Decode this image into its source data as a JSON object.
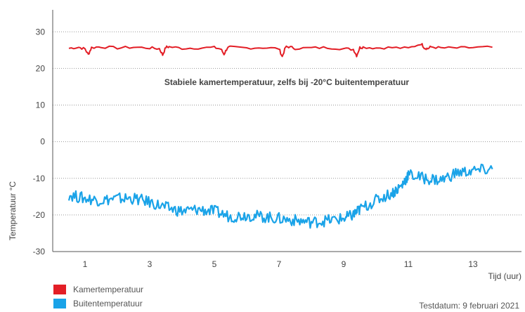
{
  "chart_data": {
    "type": "line",
    "annotation": "Stabiele kamertemperatuur, zelfs bij -20°C buitentemperatuur",
    "xlabel": "Tijd (uur)",
    "ylabel": "Temperatuur °C",
    "xlim": [
      0,
      14.5
    ],
    "ylim": [
      -30,
      36
    ],
    "xticks": [
      1,
      3,
      5,
      7,
      9,
      11,
      13
    ],
    "yticks": [
      30,
      20,
      10,
      0,
      -10,
      -20,
      -30
    ],
    "grid": "horizontal dotted",
    "legend_position": "bottom-left",
    "series": [
      {
        "name": "Kamertemperatuur",
        "color": "#e31e26",
        "x": [
          0.5,
          0.8,
          1.0,
          1.1,
          1.2,
          1.5,
          2.0,
          2.5,
          3.0,
          3.3,
          3.4,
          3.5,
          3.6,
          4.0,
          4.5,
          5.0,
          5.2,
          5.3,
          5.4,
          5.5,
          6.0,
          6.5,
          7.0,
          7.1,
          7.2,
          7.3,
          7.5,
          8.0,
          8.5,
          9.0,
          9.3,
          9.4,
          9.5,
          9.6,
          10.0,
          10.5,
          11.0,
          11.4,
          11.5,
          11.6,
          11.7,
          12.0,
          12.5,
          13.0,
          13.6
        ],
        "values": [
          25.5,
          25.8,
          25.3,
          23.8,
          25.7,
          25.9,
          25.6,
          25.8,
          25.6,
          25.4,
          23.7,
          25.8,
          25.9,
          25.5,
          25.6,
          25.7,
          25.3,
          23.9,
          25.6,
          25.8,
          25.6,
          25.7,
          25.4,
          23.2,
          25.8,
          25.9,
          25.5,
          25.6,
          25.7,
          25.4,
          25.2,
          23.5,
          25.7,
          25.8,
          25.6,
          25.7,
          25.5,
          26.8,
          25.6,
          25.4,
          25.9,
          25.6,
          25.6,
          25.7,
          25.8
        ]
      },
      {
        "name": "Buitentemperatuur",
        "color": "#1aa3e8",
        "x": [
          0.5,
          1.0,
          1.5,
          2.0,
          2.5,
          3.0,
          3.5,
          4.0,
          4.5,
          5.0,
          5.5,
          6.0,
          6.5,
          7.0,
          7.5,
          8.0,
          8.5,
          9.0,
          9.3,
          9.5,
          10.0,
          10.5,
          10.8,
          11.0,
          11.5,
          12.0,
          12.5,
          13.0,
          13.6
        ],
        "values": [
          -14.5,
          -15.5,
          -16.0,
          -15.5,
          -15.5,
          -16.5,
          -18.0,
          -19.0,
          -18.5,
          -19.0,
          -20.5,
          -20.0,
          -20.5,
          -21.0,
          -21.5,
          -22.0,
          -21.5,
          -21.0,
          -20.0,
          -18.5,
          -16.0,
          -14.0,
          -12.0,
          -9.0,
          -10.0,
          -10.5,
          -8.5,
          -8.0,
          -7.5
        ]
      }
    ]
  },
  "footer": {
    "test_date": "Testdatum: 9 februari 2021"
  }
}
